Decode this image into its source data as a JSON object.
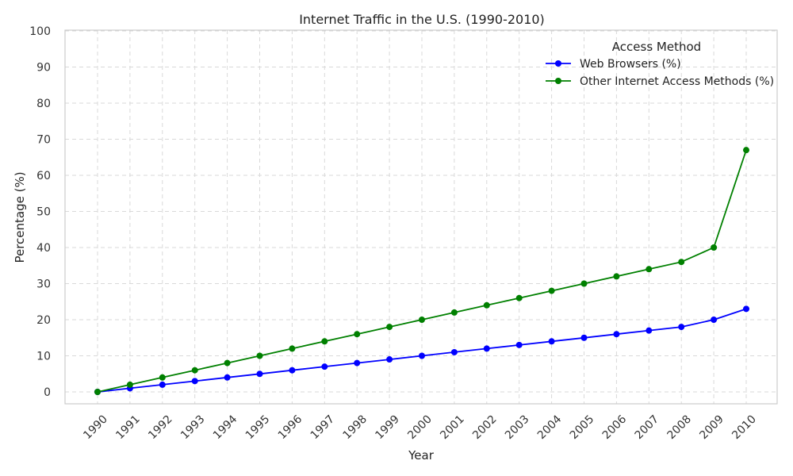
{
  "chart_data": {
    "type": "line",
    "title": "Internet Traffic in the U.S. (1990-2010)",
    "xlabel": "Year",
    "ylabel": "Percentage (%)",
    "x": [
      1990,
      1991,
      1992,
      1993,
      1994,
      1995,
      1996,
      1997,
      1998,
      1999,
      2000,
      2001,
      2002,
      2003,
      2004,
      2005,
      2006,
      2007,
      2008,
      2009,
      2010
    ],
    "ylim": [
      0,
      100
    ],
    "yticks": [
      0,
      10,
      20,
      30,
      40,
      50,
      60,
      70,
      80,
      90,
      100
    ],
    "grid": true,
    "legend": {
      "title": "Access Method",
      "placement": "top-right"
    },
    "series": [
      {
        "name": "Web Browsers (%)",
        "color": "#0000ff",
        "values": [
          0,
          1,
          2,
          3,
          4,
          5,
          6,
          7,
          8,
          9,
          10,
          11,
          12,
          13,
          14,
          15,
          16,
          17,
          18,
          20,
          23
        ]
      },
      {
        "name": "Other Internet Access Methods (%)",
        "color": "#008000",
        "values": [
          0,
          2,
          4,
          6,
          8,
          10,
          12,
          14,
          16,
          18,
          20,
          22,
          24,
          26,
          28,
          30,
          32,
          34,
          36,
          40,
          67
        ]
      }
    ]
  }
}
